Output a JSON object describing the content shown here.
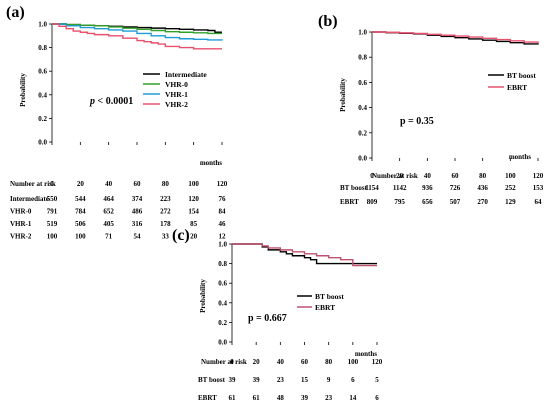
{
  "chart_data": [
    {
      "type": "line",
      "panel": "(a)",
      "ylabel": "Probability",
      "xlabel": "months",
      "xlim": [
        0,
        120
      ],
      "ylim": [
        0,
        1.0
      ],
      "yticks": [
        "0.0",
        "0.2",
        "0.4",
        "0.6",
        "0.8",
        "1.0"
      ],
      "xticks": [
        "0",
        "20",
        "40",
        "60",
        "80",
        "100",
        "120"
      ],
      "annotation_prefix": "p",
      "annotation_value": " < 0.0001",
      "legend_position": "right",
      "series": [
        {
          "name": "Intermediate",
          "color": "#000000",
          "x": [
            0,
            10,
            20,
            30,
            40,
            50,
            60,
            70,
            80,
            90,
            100,
            110,
            115,
            120
          ],
          "y": [
            1.0,
            0.995,
            0.99,
            0.985,
            0.98,
            0.975,
            0.97,
            0.965,
            0.96,
            0.955,
            0.95,
            0.945,
            0.93,
            0.93
          ]
        },
        {
          "name": "VHR-0",
          "color": "#33a02c",
          "x": [
            0,
            10,
            20,
            30,
            40,
            50,
            60,
            70,
            80,
            90,
            100,
            110,
            120
          ],
          "y": [
            1.0,
            0.995,
            0.99,
            0.985,
            0.975,
            0.965,
            0.955,
            0.945,
            0.935,
            0.93,
            0.925,
            0.92,
            0.92
          ]
        },
        {
          "name": "VHR-1",
          "color": "#1e9bd7",
          "x": [
            0,
            10,
            20,
            30,
            40,
            50,
            60,
            70,
            80,
            90,
            100,
            110,
            120
          ],
          "y": [
            1.0,
            0.985,
            0.97,
            0.96,
            0.95,
            0.94,
            0.92,
            0.9,
            0.885,
            0.875,
            0.87,
            0.865,
            0.86
          ]
        },
        {
          "name": "VHR-2",
          "color": "#e8506e",
          "x": [
            0,
            5,
            10,
            15,
            20,
            25,
            30,
            40,
            50,
            60,
            65,
            70,
            75,
            80,
            90,
            100,
            110,
            120
          ],
          "y": [
            1.0,
            0.98,
            0.96,
            0.94,
            0.93,
            0.92,
            0.91,
            0.9,
            0.88,
            0.86,
            0.85,
            0.84,
            0.83,
            0.81,
            0.8,
            0.79,
            0.79,
            0.79
          ]
        }
      ],
      "risk_table": {
        "title": "Number at risk",
        "header": [
          "0",
          "20",
          "40",
          "60",
          "80",
          "100",
          "120"
        ],
        "rows": [
          {
            "label": "Intermediate",
            "values": [
              "550",
              "544",
              "464",
              "374",
              "223",
              "120",
              "76"
            ]
          },
          {
            "label": "VHR-0",
            "values": [
              "791",
              "784",
              "652",
              "486",
              "272",
              "154",
              "84"
            ]
          },
          {
            "label": "VHR-1",
            "values": [
              "519",
              "506",
              "405",
              "316",
              "178",
              "85",
              "46"
            ]
          },
          {
            "label": "VHR-2",
            "values": [
              "100",
              "100",
              "71",
              "54",
              "33",
              "20",
              "12"
            ]
          }
        ]
      }
    },
    {
      "type": "line",
      "panel": "(b)",
      "ylabel": "Probability",
      "xlabel": "months",
      "xlim": [
        0,
        120
      ],
      "ylim": [
        0,
        1.0
      ],
      "yticks": [
        "0.0",
        "0.2",
        "0.4",
        "0.6",
        "0.8",
        "1.0"
      ],
      "xticks": [
        "0",
        "20",
        "40",
        "60",
        "80",
        "100",
        "120"
      ],
      "annotation": "p = 0.35",
      "legend_position": "right",
      "series": [
        {
          "name": "BT boost",
          "color": "#000000",
          "x": [
            0,
            10,
            20,
            30,
            40,
            50,
            60,
            70,
            80,
            90,
            100,
            110,
            120
          ],
          "y": [
            1.0,
            0.995,
            0.99,
            0.985,
            0.975,
            0.965,
            0.955,
            0.945,
            0.935,
            0.925,
            0.915,
            0.905,
            0.9
          ]
        },
        {
          "name": "EBRT",
          "color": "#e8506e",
          "x": [
            0,
            10,
            20,
            30,
            40,
            50,
            60,
            70,
            80,
            90,
            100,
            110,
            120
          ],
          "y": [
            1.0,
            0.997,
            0.993,
            0.988,
            0.982,
            0.975,
            0.968,
            0.96,
            0.95,
            0.94,
            0.93,
            0.92,
            0.91
          ]
        }
      ],
      "risk_table": {
        "title": "Number at risk",
        "header": [
          "0",
          "20",
          "40",
          "60",
          "80",
          "100",
          "120"
        ],
        "rows": [
          {
            "label": "BT boost",
            "values": [
              "1154",
              "1142",
              "936",
              "726",
              "436",
              "252",
              "153"
            ]
          },
          {
            "label": "EBRT",
            "values": [
              "809",
              "795",
              "656",
              "507",
              "270",
              "129",
              "64"
            ]
          }
        ]
      }
    },
    {
      "type": "line",
      "panel": "(c)",
      "ylabel": "Probability",
      "xlabel": "months",
      "xlim": [
        0,
        120
      ],
      "ylim": [
        0,
        1.0
      ],
      "yticks": [
        "0.0",
        "0.2",
        "0.4",
        "0.6",
        "0.8",
        "1.0"
      ],
      "xticks": [
        "0",
        "20",
        "40",
        "60",
        "80",
        "100",
        "120"
      ],
      "annotation": "p = 0.667",
      "legend_position": "right",
      "series": [
        {
          "name": "BT boost",
          "color": "#000000",
          "x": [
            0,
            20,
            25,
            30,
            40,
            45,
            50,
            60,
            65,
            70,
            80,
            90,
            100,
            110,
            120
          ],
          "y": [
            1.0,
            1.0,
            0.97,
            0.94,
            0.92,
            0.9,
            0.88,
            0.86,
            0.84,
            0.8,
            0.8,
            0.8,
            0.8,
            0.8,
            0.8
          ]
        },
        {
          "name": "EBRT",
          "color": "#c0506e",
          "x": [
            0,
            20,
            25,
            30,
            40,
            50,
            60,
            70,
            80,
            90,
            100,
            110,
            120
          ],
          "y": [
            1.0,
            1.0,
            0.98,
            0.96,
            0.94,
            0.92,
            0.9,
            0.88,
            0.86,
            0.84,
            0.78,
            0.78,
            0.78
          ]
        }
      ],
      "risk_table": {
        "title": "Number at risk",
        "header": [
          "0",
          "20",
          "40",
          "60",
          "80",
          "100",
          "120"
        ],
        "rows": [
          {
            "label": "BT boost",
            "values": [
              "39",
              "39",
              "23",
              "15",
              "9",
              "6",
              "5"
            ]
          },
          {
            "label": "EBRT",
            "values": [
              "61",
              "61",
              "48",
              "39",
              "23",
              "14",
              "6"
            ]
          }
        ]
      }
    }
  ]
}
